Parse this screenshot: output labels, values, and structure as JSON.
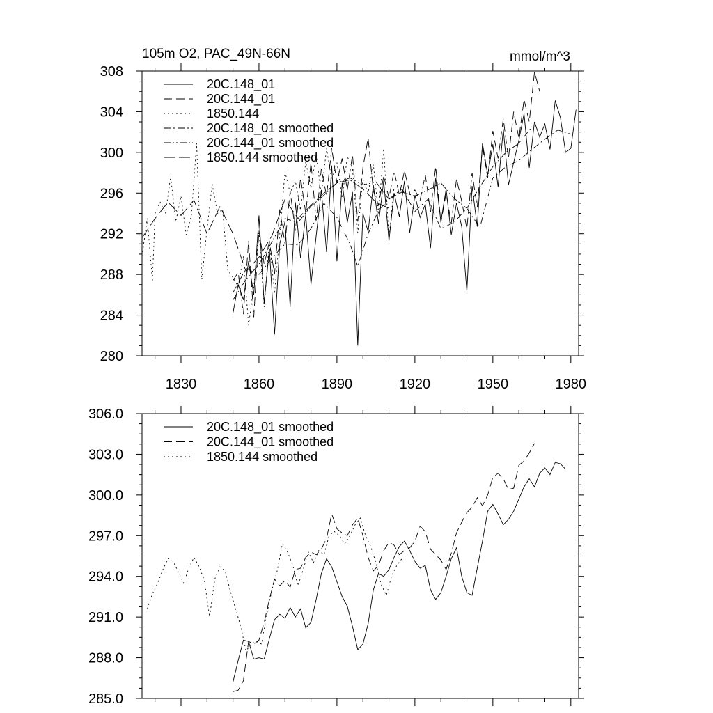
{
  "chart_data": [
    {
      "type": "line",
      "title_left": "105m O2, PAC_49N-66N",
      "title_right": "mmol/m^3",
      "xlabel": "",
      "ylabel": "",
      "xlim": [
        1815,
        1983
      ],
      "ylim": [
        280,
        308
      ],
      "x_ticks": [
        1830,
        1860,
        1890,
        1920,
        1950,
        1980
      ],
      "x_tick_labels": [
        "1830",
        "1860",
        "1890",
        "1920",
        "1950",
        "1980"
      ],
      "y_ticks": [
        280,
        284,
        288,
        292,
        296,
        300,
        304,
        308
      ],
      "y_tick_labels": [
        "280",
        "284",
        "288",
        "292",
        "296",
        "300",
        "304",
        "308"
      ],
      "legend_position": "top-left",
      "series": [
        {
          "name": "20C.148_01",
          "style": "solid",
          "x": [
            1850,
            1852,
            1854,
            1856,
            1858,
            1860,
            1862,
            1864,
            1866,
            1868,
            1870,
            1872,
            1874,
            1876,
            1878,
            1880,
            1882,
            1884,
            1886,
            1888,
            1890,
            1892,
            1894,
            1896,
            1898,
            1900,
            1902,
            1904,
            1906,
            1908,
            1910,
            1912,
            1914,
            1916,
            1918,
            1920,
            1922,
            1924,
            1926,
            1928,
            1930,
            1932,
            1934,
            1936,
            1938,
            1940,
            1942,
            1944,
            1946,
            1948,
            1950,
            1952,
            1954,
            1956,
            1958,
            1960,
            1962,
            1964,
            1966,
            1968,
            1970,
            1972,
            1974,
            1976,
            1978,
            1980,
            1982
          ],
          "y": [
            284.2,
            287.0,
            285.5,
            289.3,
            286.0,
            293.8,
            285.2,
            290.5,
            282.1,
            291.0,
            293.2,
            284.8,
            295.1,
            289.6,
            293.9,
            287.0,
            291.8,
            296.3,
            290.2,
            298.7,
            289.3,
            297.0,
            293.1,
            296.1,
            281.0,
            294.0,
            292.2,
            296.8,
            293.0,
            297.2,
            291.3,
            296.0,
            293.7,
            297.2,
            292.1,
            295.8,
            293.6,
            294.9,
            290.6,
            297.5,
            293.2,
            296.4,
            291.9,
            295.0,
            292.7,
            286.3,
            296.7,
            292.7,
            300.9,
            297.8,
            300.8,
            296.6,
            302.3,
            296.8,
            299.0,
            301.2,
            303.8,
            298.5,
            303.0,
            301.5,
            302.8,
            300.3,
            305.1,
            303.4,
            300.0,
            300.4,
            304.2
          ]
        },
        {
          "name": "20C.144_01",
          "style": "dashed",
          "x": [
            1850,
            1852,
            1854,
            1856,
            1858,
            1860,
            1862,
            1864,
            1866,
            1868,
            1870,
            1872,
            1874,
            1876,
            1878,
            1880,
            1882,
            1884,
            1886,
            1888,
            1890,
            1892,
            1894,
            1896,
            1898,
            1900,
            1902,
            1904,
            1906,
            1908,
            1910,
            1912,
            1914,
            1916,
            1918,
            1920,
            1922,
            1924,
            1926,
            1928,
            1930,
            1932,
            1934,
            1936,
            1938,
            1940,
            1942,
            1944,
            1946,
            1948,
            1950,
            1952,
            1954,
            1956,
            1958,
            1960,
            1962,
            1964,
            1966,
            1968
          ],
          "y": [
            287.4,
            288.2,
            284.1,
            291.3,
            283.8,
            292.3,
            289.0,
            291.2,
            288.0,
            294.4,
            291.0,
            296.2,
            292.3,
            297.5,
            294.0,
            299.0,
            293.3,
            298.4,
            295.7,
            300.4,
            297.0,
            299.4,
            296.3,
            299.8,
            293.2,
            298.5,
            301.4,
            296.2,
            294.8,
            297.7,
            295.5,
            298.2,
            295.8,
            298.2,
            296.0,
            296.3,
            295.3,
            297.8,
            294.1,
            298.6,
            293.1,
            296.0,
            293.0,
            297.4,
            295.2,
            292.5,
            298.0,
            294.6,
            300.6,
            297.5,
            302.1,
            299.4,
            303.3,
            299.4,
            304.0,
            301.4,
            305.2,
            303.0,
            307.9,
            306.0
          ]
        },
        {
          "name": "1850.144",
          "style": "dotted",
          "x": [
            1815,
            1817,
            1819,
            1820,
            1822,
            1824,
            1826,
            1828,
            1830,
            1832,
            1834,
            1836,
            1838,
            1840,
            1842,
            1844,
            1846,
            1848,
            1850,
            1852,
            1854,
            1856,
            1858,
            1860,
            1862,
            1864,
            1866,
            1868,
            1870,
            1872,
            1874,
            1876,
            1878,
            1880,
            1882,
            1884,
            1886,
            1888,
            1890,
            1892,
            1894,
            1896,
            1898,
            1900,
            1902,
            1904,
            1906,
            1908,
            1910,
            1912
          ],
          "y": [
            289.8,
            293.5,
            287.4,
            294.0,
            295.1,
            294.0,
            297.6,
            293.2,
            295.7,
            291.9,
            293.8,
            300.9,
            287.5,
            292.4,
            296.9,
            294.0,
            294.4,
            288.4,
            287.7,
            286.8,
            289.8,
            283.0,
            286.8,
            292.3,
            284.8,
            291.3,
            286.1,
            292.0,
            298.1,
            296.0,
            297.2,
            294.3,
            299.1,
            296.5,
            299.8,
            295.8,
            300.4,
            297.3,
            299.0,
            295.5,
            299.6,
            298.4,
            292.1,
            297.3,
            296.0,
            298.8,
            294.0,
            300.4,
            291.5,
            296.6
          ]
        },
        {
          "name": "20C.148_01 smoothed",
          "style": "dashdot",
          "x": [
            1850,
            1855,
            1860,
            1865,
            1870,
            1875,
            1880,
            1885,
            1890,
            1895,
            1898,
            1902,
            1906,
            1910,
            1915,
            1920,
            1925,
            1930,
            1935,
            1940,
            1945,
            1950,
            1955,
            1960,
            1965,
            1970,
            1975,
            1980
          ],
          "y": [
            286.2,
            288.6,
            288.0,
            289.6,
            291.0,
            290.9,
            292.5,
            295.0,
            293.6,
            291.0,
            288.8,
            292.0,
            294.3,
            295.4,
            296.4,
            294.2,
            295.4,
            292.5,
            293.1,
            294.5,
            292.6,
            297.5,
            298.6,
            299.2,
            300.3,
            301.3,
            302.2,
            301.8
          ]
        },
        {
          "name": "20C.144_01 smoothed",
          "style": "dashdotdot",
          "x": [
            1850,
            1855,
            1860,
            1865,
            1870,
            1875,
            1880,
            1885,
            1890,
            1895,
            1900,
            1905,
            1910,
            1915,
            1920,
            1925,
            1930,
            1935,
            1940,
            1945,
            1950,
            1955,
            1960,
            1965
          ],
          "y": [
            285.5,
            287.5,
            289.0,
            291.2,
            293.5,
            293.1,
            294.7,
            295.8,
            297.0,
            297.5,
            296.8,
            297.1,
            295.4,
            296.1,
            295.7,
            296.3,
            297.0,
            295.5,
            294.5,
            296.6,
            298.6,
            300.0,
            300.9,
            302.5
          ]
        },
        {
          "name": "1850.144 smoothed",
          "style": "longdash",
          "x": [
            1815,
            1820,
            1825,
            1830,
            1835,
            1840,
            1845,
            1850,
            1855,
            1860,
            1865,
            1870,
            1875,
            1880,
            1885,
            1890,
            1895,
            1900,
            1905,
            1910
          ],
          "y": [
            291.6,
            293.5,
            295.1,
            293.8,
            295.3,
            292.0,
            294.7,
            292.0,
            288.3,
            289.7,
            291.8,
            295.4,
            293.5,
            294.8,
            296.0,
            297.0,
            297.3,
            296.4,
            295.1,
            294.5
          ]
        }
      ]
    },
    {
      "type": "line",
      "title": "",
      "xlabel": "",
      "ylabel": "",
      "xlim": [
        1815,
        1983
      ],
      "ylim": [
        285.0,
        306.0
      ],
      "x_ticks": [
        1830,
        1860,
        1890,
        1920,
        1950,
        1980
      ],
      "y_ticks": [
        285.0,
        288.0,
        291.0,
        294.0,
        297.0,
        300.0,
        303.0,
        306.0
      ],
      "y_tick_labels": [
        "285.0",
        "288.0",
        "291.0",
        "294.0",
        "297.0",
        "300.0",
        "303.0",
        "306.0"
      ],
      "legend_position": "top-left",
      "series": [
        {
          "name": "20C.148_01 smoothed",
          "style": "solid",
          "x": [
            1850,
            1852,
            1854,
            1856,
            1858,
            1860,
            1862,
            1864,
            1866,
            1868,
            1870,
            1872,
            1874,
            1876,
            1878,
            1880,
            1882,
            1884,
            1886,
            1888,
            1890,
            1892,
            1894,
            1896,
            1898,
            1900,
            1902,
            1904,
            1906,
            1908,
            1910,
            1912,
            1914,
            1916,
            1918,
            1920,
            1922,
            1924,
            1926,
            1928,
            1930,
            1932,
            1934,
            1936,
            1938,
            1940,
            1942,
            1944,
            1946,
            1948,
            1950,
            1952,
            1954,
            1956,
            1958,
            1960,
            1962,
            1964,
            1966,
            1968,
            1970,
            1972,
            1974,
            1976,
            1978
          ],
          "y": [
            286.2,
            287.8,
            289.3,
            289.2,
            287.9,
            288.0,
            287.9,
            289.4,
            290.8,
            291.2,
            290.9,
            291.7,
            291.0,
            291.6,
            290.2,
            290.6,
            292.3,
            294.2,
            295.3,
            294.7,
            293.6,
            292.5,
            291.8,
            290.3,
            288.6,
            289.0,
            290.5,
            293.0,
            294.2,
            294.0,
            294.5,
            295.4,
            296.2,
            296.6,
            295.9,
            295.1,
            294.6,
            294.8,
            293.0,
            292.3,
            292.8,
            294.0,
            295.3,
            296.1,
            294.0,
            292.8,
            292.6,
            294.6,
            296.6,
            298.8,
            299.3,
            298.6,
            297.8,
            298.2,
            298.8,
            299.7,
            300.6,
            301.2,
            300.6,
            301.6,
            302.0,
            301.5,
            302.4,
            302.3,
            301.9
          ]
        },
        {
          "name": "20C.144_01 smoothed",
          "style": "dashed",
          "x": [
            1850,
            1852,
            1854,
            1856,
            1858,
            1860,
            1862,
            1864,
            1866,
            1868,
            1870,
            1872,
            1874,
            1876,
            1878,
            1880,
            1882,
            1884,
            1886,
            1888,
            1890,
            1892,
            1894,
            1896,
            1898,
            1900,
            1902,
            1904,
            1906,
            1908,
            1910,
            1912,
            1914,
            1916,
            1918,
            1920,
            1922,
            1924,
            1926,
            1928,
            1930,
            1932,
            1934,
            1936,
            1938,
            1940,
            1942,
            1944,
            1946,
            1948,
            1950,
            1952,
            1954,
            1956,
            1958,
            1960,
            1962,
            1964,
            1966
          ],
          "y": [
            285.5,
            285.6,
            286.3,
            289.2,
            289.0,
            289.3,
            290.6,
            292.3,
            293.8,
            293.3,
            293.7,
            293.2,
            294.5,
            294.6,
            295.4,
            295.8,
            295.6,
            296.0,
            296.8,
            298.6,
            297.5,
            297.2,
            297.0,
            297.8,
            298.3,
            297.0,
            295.4,
            294.4,
            294.8,
            295.9,
            296.5,
            296.3,
            295.6,
            295.9,
            296.1,
            296.6,
            297.7,
            297.3,
            296.0,
            295.6,
            295.2,
            294.5,
            295.7,
            297.2,
            298.0,
            298.7,
            299.1,
            299.8,
            299.2,
            300.0,
            301.3,
            301.6,
            301.2,
            300.4,
            300.5,
            302.2,
            302.5,
            303.1,
            303.8
          ]
        },
        {
          "name": "1850.144 smoothed",
          "style": "dotted",
          "x": [
            1817,
            1819,
            1821,
            1823,
            1825,
            1827,
            1829,
            1831,
            1833,
            1835,
            1837,
            1839,
            1841,
            1843,
            1845,
            1847,
            1849,
            1851,
            1853,
            1855,
            1857,
            1859,
            1861,
            1863,
            1865,
            1867,
            1869,
            1871,
            1873,
            1875,
            1877,
            1879,
            1881,
            1883,
            1885,
            1887,
            1889,
            1891,
            1893,
            1895,
            1897,
            1899,
            1901,
            1903,
            1905,
            1907,
            1909,
            1911,
            1913,
            1915
          ],
          "y": [
            291.6,
            292.7,
            293.5,
            294.5,
            295.3,
            295.1,
            294.3,
            293.5,
            294.6,
            295.4,
            294.7,
            293.7,
            291.0,
            293.8,
            294.7,
            294.4,
            292.9,
            291.6,
            290.3,
            288.5,
            289.0,
            289.2,
            289.0,
            291.2,
            293.0,
            294.4,
            296.4,
            295.8,
            294.8,
            293.3,
            294.5,
            295.8,
            295.0,
            295.9,
            295.6,
            297.0,
            297.3,
            297.0,
            296.4,
            297.0,
            297.8,
            298.3,
            297.0,
            296.2,
            295.0,
            293.4,
            292.6,
            294.0,
            294.8,
            295.3
          ]
        }
      ]
    }
  ]
}
